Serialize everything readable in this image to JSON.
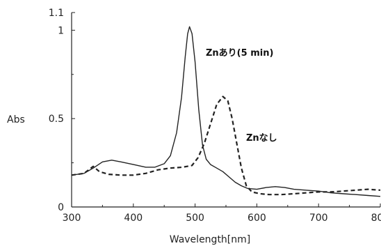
{
  "chart_data": {
    "type": "line",
    "xlabel": "Wavelength[nm]",
    "ylabel": "Abs",
    "xlim": [
      300,
      800
    ],
    "ylim": [
      0,
      1.1
    ],
    "x_ticks": [
      300,
      400,
      500,
      600,
      700,
      800
    ],
    "x_tick_labels": [
      "300",
      "400",
      "500",
      "600",
      "700",
      "800"
    ],
    "y_ticks": [
      0,
      0.5,
      1,
      1.1
    ],
    "y_tick_labels": [
      "0",
      "0.5",
      "1",
      "1.1"
    ],
    "grid": false,
    "legend": "none",
    "series": [
      {
        "annotation": "Znあり(5 min)",
        "style": "solid",
        "color": "#222222",
        "points": [
          [
            300,
            0.18
          ],
          [
            320,
            0.19
          ],
          [
            335,
            0.22
          ],
          [
            350,
            0.255
          ],
          [
            365,
            0.265
          ],
          [
            380,
            0.255
          ],
          [
            400,
            0.24
          ],
          [
            420,
            0.225
          ],
          [
            435,
            0.225
          ],
          [
            450,
            0.245
          ],
          [
            460,
            0.29
          ],
          [
            470,
            0.42
          ],
          [
            478,
            0.62
          ],
          [
            484,
            0.85
          ],
          [
            488,
            0.98
          ],
          [
            491,
            1.02
          ],
          [
            495,
            0.98
          ],
          [
            500,
            0.82
          ],
          [
            506,
            0.55
          ],
          [
            512,
            0.35
          ],
          [
            518,
            0.27
          ],
          [
            525,
            0.24
          ],
          [
            535,
            0.22
          ],
          [
            545,
            0.2
          ],
          [
            555,
            0.17
          ],
          [
            565,
            0.14
          ],
          [
            575,
            0.12
          ],
          [
            585,
            0.105
          ],
          [
            600,
            0.1
          ],
          [
            615,
            0.11
          ],
          [
            630,
            0.115
          ],
          [
            645,
            0.11
          ],
          [
            660,
            0.1
          ],
          [
            680,
            0.095
          ],
          [
            700,
            0.09
          ],
          [
            720,
            0.08
          ],
          [
            740,
            0.075
          ],
          [
            760,
            0.07
          ],
          [
            780,
            0.065
          ],
          [
            800,
            0.06
          ]
        ]
      },
      {
        "annotation": "Znなし",
        "style": "dashed",
        "color": "#222222",
        "points": [
          [
            300,
            0.18
          ],
          [
            320,
            0.19
          ],
          [
            335,
            0.23
          ],
          [
            345,
            0.2
          ],
          [
            360,
            0.185
          ],
          [
            380,
            0.18
          ],
          [
            400,
            0.18
          ],
          [
            420,
            0.19
          ],
          [
            440,
            0.21
          ],
          [
            460,
            0.22
          ],
          [
            480,
            0.225
          ],
          [
            495,
            0.235
          ],
          [
            505,
            0.28
          ],
          [
            515,
            0.36
          ],
          [
            525,
            0.47
          ],
          [
            535,
            0.58
          ],
          [
            545,
            0.625
          ],
          [
            553,
            0.6
          ],
          [
            560,
            0.5
          ],
          [
            568,
            0.35
          ],
          [
            575,
            0.22
          ],
          [
            583,
            0.12
          ],
          [
            592,
            0.085
          ],
          [
            605,
            0.075
          ],
          [
            620,
            0.07
          ],
          [
            640,
            0.07
          ],
          [
            660,
            0.075
          ],
          [
            680,
            0.08
          ],
          [
            700,
            0.085
          ],
          [
            720,
            0.085
          ],
          [
            740,
            0.09
          ],
          [
            760,
            0.095
          ],
          [
            780,
            0.1
          ],
          [
            800,
            0.095
          ]
        ]
      }
    ]
  }
}
